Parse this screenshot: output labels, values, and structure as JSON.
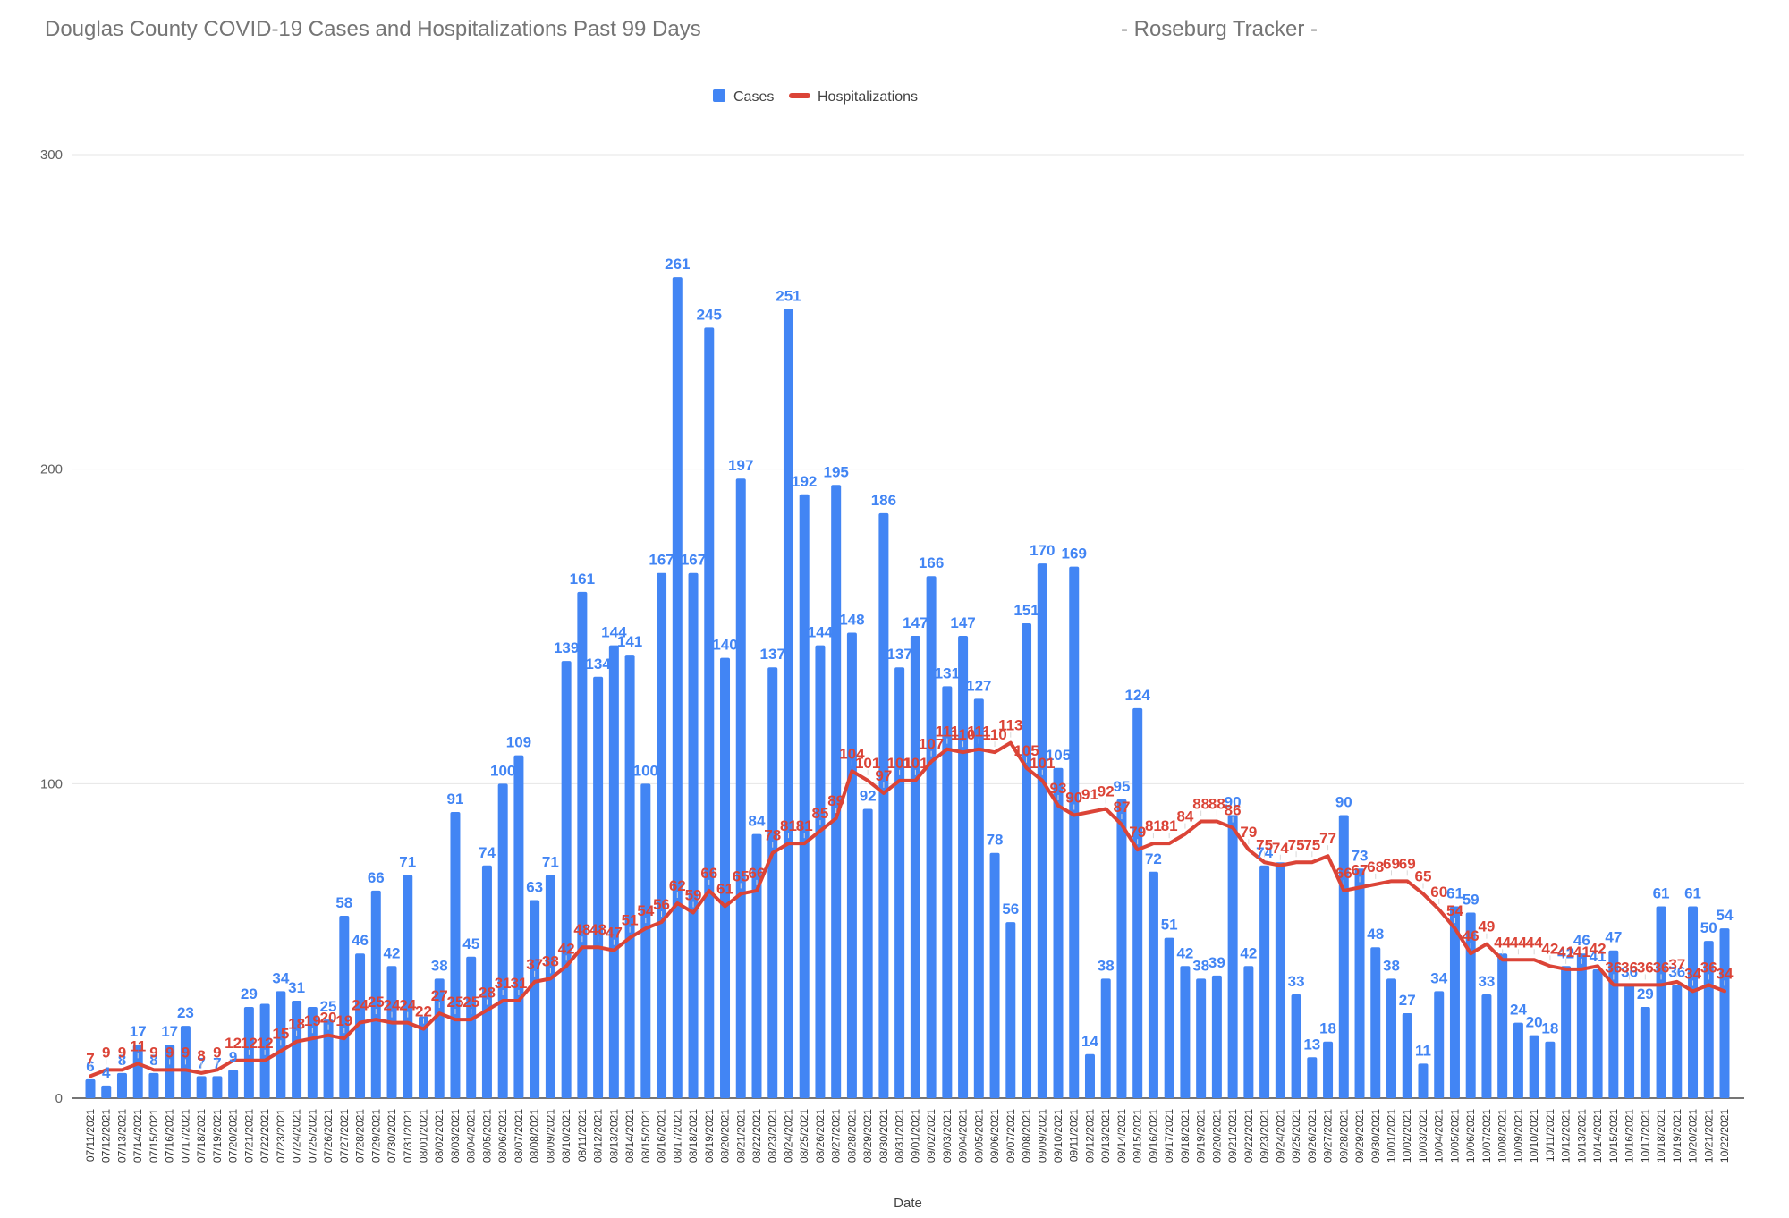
{
  "title": "Douglas County COVID-19 Cases and Hospitalizations Past 99 Days",
  "tracker_label": "- Roseburg Tracker -",
  "legend": {
    "cases_label": "Cases",
    "hospitalizations_label": "Hospitalizations"
  },
  "axis": {
    "x_title": "Date",
    "y_ticks": [
      0,
      100,
      200,
      300
    ]
  },
  "colors": {
    "cases": "#4285F4",
    "hospitalizations": "#DB4437",
    "gridline": "#e6e6e6",
    "axis_line": "#757575",
    "title_text": "#757575"
  },
  "chart_data": {
    "type": "bar",
    "title": "Douglas County COVID-19 Cases and Hospitalizations Past 99 Days",
    "xlabel": "Date",
    "ylabel": "",
    "ylim": [
      0,
      300
    ],
    "grid": true,
    "legend_position": "top-center",
    "categories": [
      "07/11/2021",
      "07/12/2021",
      "07/13/2021",
      "07/14/2021",
      "07/15/2021",
      "07/16/2021",
      "07/17/2021",
      "07/18/2021",
      "07/19/2021",
      "07/20/2021",
      "07/21/2021",
      "07/22/2021",
      "07/23/2021",
      "07/24/2021",
      "07/25/2021",
      "07/26/2021",
      "07/27/2021",
      "07/28/2021",
      "07/29/2021",
      "07/30/2021",
      "07/31/2021",
      "08/01/2021",
      "08/02/2021",
      "08/03/2021",
      "08/04/2021",
      "08/05/2021",
      "08/06/2021",
      "08/07/2021",
      "08/08/2021",
      "08/09/2021",
      "08/10/2021",
      "08/11/2021",
      "08/12/2021",
      "08/13/2021",
      "08/14/2021",
      "08/15/2021",
      "08/16/2021",
      "08/17/2021",
      "08/18/2021",
      "08/19/2021",
      "08/20/2021",
      "08/21/2021",
      "08/22/2021",
      "08/23/2021",
      "08/24/2021",
      "08/25/2021",
      "08/26/2021",
      "08/27/2021",
      "08/28/2021",
      "08/29/2021",
      "08/30/2021",
      "08/31/2021",
      "09/01/2021",
      "09/02/2021",
      "09/03/2021",
      "09/04/2021",
      "09/05/2021",
      "09/06/2021",
      "09/07/2021",
      "09/08/2021",
      "09/09/2021",
      "09/10/2021",
      "09/11/2021",
      "09/12/2021",
      "09/13/2021",
      "09/14/2021",
      "09/15/2021",
      "09/16/2021",
      "09/17/2021",
      "09/18/2021",
      "09/19/2021",
      "09/20/2021",
      "09/21/2021",
      "09/22/2021",
      "09/23/2021",
      "09/24/2021",
      "09/25/2021",
      "09/26/2021",
      "09/27/2021",
      "09/28/2021",
      "09/29/2021",
      "09/30/2021",
      "10/01/2021",
      "10/02/2021",
      "10/03/2021",
      "10/04/2021",
      "10/05/2021",
      "10/06/2021",
      "10/07/2021",
      "10/08/2021",
      "10/09/2021",
      "10/10/2021",
      "10/11/2021",
      "10/12/2021",
      "10/13/2021",
      "10/14/2021",
      "10/15/2021",
      "10/16/2021",
      "10/17/2021",
      "10/18/2021",
      "10/19/2021",
      "10/20/2021",
      "10/21/2021",
      "10/22/2021"
    ],
    "series": [
      {
        "name": "Cases",
        "type": "bar",
        "color": "#4285F4",
        "values": [
          6,
          4,
          8,
          17,
          8,
          17,
          23,
          7,
          7,
          9,
          29,
          30,
          34,
          31,
          29,
          25,
          58,
          46,
          66,
          42,
          71,
          26,
          38,
          91,
          45,
          74,
          100,
          109,
          63,
          71,
          139,
          161,
          134,
          144,
          141,
          100,
          167,
          261,
          167,
          245,
          140,
          197,
          84,
          137,
          251,
          192,
          144,
          195,
          148,
          92,
          186,
          137,
          147,
          166,
          131,
          147,
          127,
          78,
          56,
          151,
          170,
          105,
          169,
          14,
          38,
          95,
          124,
          72,
          51,
          42,
          38,
          39,
          90,
          42,
          74,
          75,
          33,
          13,
          18,
          90,
          73,
          48,
          38,
          27,
          11,
          34,
          61,
          59,
          33,
          46,
          24,
          20,
          18,
          42,
          46,
          41,
          47,
          36,
          29,
          61,
          36,
          61,
          50,
          54
        ],
        "hidden_label_indices": [
          11,
          14,
          21,
          75,
          89
        ]
      },
      {
        "name": "Hospitalizations",
        "type": "line",
        "color": "#DB4437",
        "values": [
          7,
          9,
          9,
          11,
          9,
          9,
          9,
          8,
          9,
          12,
          12,
          12,
          15,
          18,
          19,
          20,
          19,
          24,
          25,
          24,
          24,
          22,
          27,
          25,
          25,
          28,
          31,
          31,
          37,
          38,
          42,
          48,
          48,
          47,
          51,
          54,
          56,
          62,
          59,
          66,
          61,
          65,
          66,
          78,
          81,
          81,
          85,
          89,
          104,
          101,
          97,
          101,
          101,
          107,
          111,
          110,
          111,
          110,
          113,
          105,
          101,
          93,
          90,
          91,
          92,
          87,
          79,
          81,
          81,
          84,
          88,
          88,
          86,
          79,
          75,
          74,
          75,
          75,
          77,
          66,
          67,
          68,
          69,
          69,
          65,
          60,
          54,
          46,
          49,
          44,
          44,
          44,
          42,
          41,
          41,
          42,
          36,
          36,
          36,
          36,
          37,
          34,
          36,
          34
        ],
        "hidden_label_indices": []
      }
    ]
  }
}
